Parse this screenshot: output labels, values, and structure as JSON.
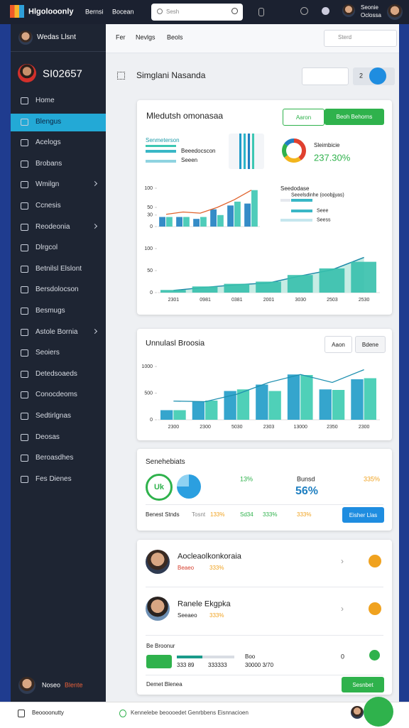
{
  "topbar": {
    "brand": "Hlgolooonly",
    "nav": [
      "Bernsi",
      "Bocean"
    ],
    "search_placeholder": "Sesh",
    "user": [
      "Seonie",
      "Oclossa"
    ]
  },
  "sidebar": {
    "profile": "Wedas Llsnt",
    "account": "SI02657",
    "active": 1,
    "menu": [
      {
        "label": "Home"
      },
      {
        "label": "Blengus"
      },
      {
        "label": "Acelogs"
      },
      {
        "label": "Brobans"
      },
      {
        "label": "Wmilgn",
        "submenu": true
      },
      {
        "label": "Ccnesis"
      },
      {
        "label": "Reodeonia",
        "submenu": true
      },
      {
        "label": "Dlrgcol"
      },
      {
        "label": "Betnilsl Elslont"
      },
      {
        "label": "Bersdolocson"
      },
      {
        "label": "Besmugs"
      },
      {
        "label": "Astole Bornia",
        "submenu": true
      },
      {
        "label": "Seoiers"
      },
      {
        "label": "Detedsoaeds"
      },
      {
        "label": "Conocdeoms"
      },
      {
        "label": "Sedtirlgnas"
      },
      {
        "label": "Deosas"
      },
      {
        "label": "Beroasdhes"
      },
      {
        "label": "Fes Dienes"
      }
    ],
    "footer": {
      "name": "Noseo",
      "tag": "Blente"
    }
  },
  "main": {
    "breadcrumb": [
      "Fer",
      "Nevlgs",
      "Beols"
    ],
    "search_placeholder": "Sterd",
    "header": {
      "title": "Simglani Nasanda",
      "badge": "2"
    },
    "overview": {
      "title": "Mledutsh omonasaa",
      "buttons": [
        "Aaron",
        "Beoh Behorns"
      ],
      "legend_title": "Senmeterson",
      "legend": [
        "Beeedocscon",
        "Seeen"
      ],
      "donut": {
        "type": "donut",
        "values": [
          40,
          25,
          20,
          15
        ],
        "colors": [
          "#e0402f",
          "#f2b51d",
          "#2fb24c",
          "#1f7fc1"
        ]
      },
      "donut_label": "Sleimbicie",
      "donut_value": "237.30%",
      "side_title": "Seedodase",
      "side_items": [
        "Seeelsdinhe (ooobjjyas)",
        "Seee",
        "Seess"
      ],
      "chart": {
        "type": "combo",
        "ylim": [
          0,
          100
        ],
        "yticks": [
          0,
          30,
          50,
          100
        ],
        "categories": [
          null,
          null,
          null,
          null,
          null,
          null
        ],
        "series": [
          {
            "type": "bar",
            "color": "#1f7fc1",
            "values": [
              25,
              25,
              20,
              45,
              55,
              60
            ]
          },
          {
            "type": "bar",
            "color": "#3cc7b3",
            "values": [
              25,
              25,
              25,
              30,
              65,
              95
            ]
          },
          {
            "type": "line",
            "color": "#e0622c",
            "values": [
              32,
              38,
              35,
              50,
              70,
              95
            ]
          }
        ]
      },
      "trend": {
        "type": "combo",
        "ylim": [
          0,
          100
        ],
        "yticks": [
          0,
          50,
          100
        ],
        "categories": [
          "2301",
          "0981",
          "0381",
          "2001",
          "3030",
          "2503",
          "2530"
        ],
        "series": [
          {
            "type": "area",
            "color": "#1e8aa8",
            "fill": "#c6ece4",
            "values": [
              5,
              12,
              18,
              22,
              38,
              52,
              80
            ]
          },
          {
            "type": "bar",
            "color": "#36c0ac",
            "values": [
              6,
              14,
              20,
              25,
              40,
              55,
              70
            ]
          }
        ]
      }
    },
    "analysis": {
      "title": "Unnulasl Broosia",
      "buttons": [
        "Aaon",
        "Bdene"
      ],
      "chart": {
        "type": "combo",
        "ylim": [
          0,
          1000
        ],
        "yticks": [
          0,
          500,
          1000
        ],
        "categories": [
          "2300",
          "2300",
          "5030",
          "2303",
          "13000",
          "2350",
          "2300"
        ],
        "series": [
          {
            "type": "bar",
            "color": "#1f9bc8",
            "values": [
              180,
              340,
              540,
              660,
              850,
              570,
              760
            ]
          },
          {
            "type": "bar",
            "color": "#3ccbb0",
            "values": [
              180,
              360,
              570,
              540,
              840,
              560,
              780
            ]
          },
          {
            "type": "line",
            "color": "#1e90b0",
            "values": [
              350,
              340,
              480,
              700,
              850,
              700,
              940
            ]
          }
        ]
      }
    },
    "stats": {
      "title": "Senehebiats",
      "badge": "Uk",
      "top": [
        "13%",
        "Bunsd",
        "335%"
      ],
      "highlight": "56%",
      "bottom": [
        "Benest Stnds",
        "Tosnt",
        "133%",
        "Sd34",
        "333%",
        "333%"
      ],
      "button": "Eisher Llas"
    },
    "people": {
      "items": [
        {
          "name": "Aocleaolkonkoraia",
          "role": "Beaeo",
          "rate": "333%"
        },
        {
          "name": "Ranele Ekgpka",
          "role": "Seeaeo",
          "rate": "333%"
        }
      ],
      "progress": {
        "title": "Be Broonur",
        "row": [
          "333 89",
          "333333",
          "30000 3/70"
        ],
        "label": "Boo",
        "count": "0"
      },
      "footer": {
        "label": "Demet Blenea",
        "button": "Sesnbet"
      }
    }
  },
  "bottombar": {
    "app": "Beoooonutty",
    "status": "Kennelebe beoooedet Genrbbens Eisnnacioen"
  }
}
